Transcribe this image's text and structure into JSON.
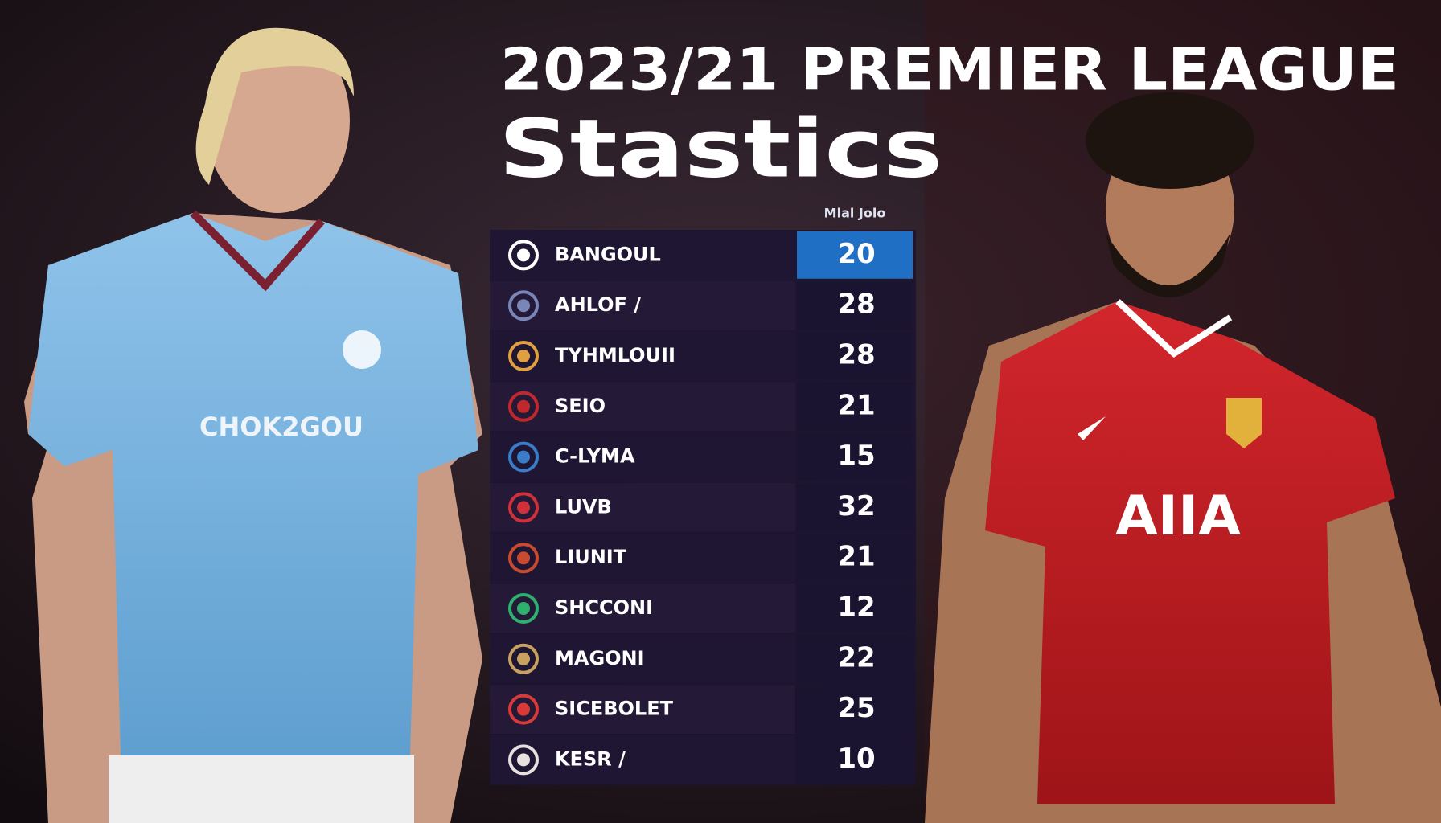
{
  "header": {
    "title": "2023/21 PREMIER LEAGUE",
    "subtitle": "Stastics"
  },
  "table": {
    "column_header": "Mlal Jolo",
    "rows": [
      [
        "BANGOUL",
        20
      ],
      [
        "AHLOF /",
        28
      ],
      [
        "TYHMLOUII",
        28
      ],
      [
        "SEIO",
        21
      ],
      [
        "C-LYMA",
        15
      ],
      [
        "LUVB",
        32
      ],
      [
        "LIUNIT",
        21
      ],
      [
        "SHCCONI",
        12
      ],
      [
        "MAGONI",
        22
      ],
      [
        "SICEBOLET",
        25
      ],
      [
        "KESR /",
        10
      ]
    ]
  },
  "players": [
    {
      "shirt_text": "CHOK2GOU"
    },
    {
      "shirt_text": "AIIA"
    }
  ]
}
